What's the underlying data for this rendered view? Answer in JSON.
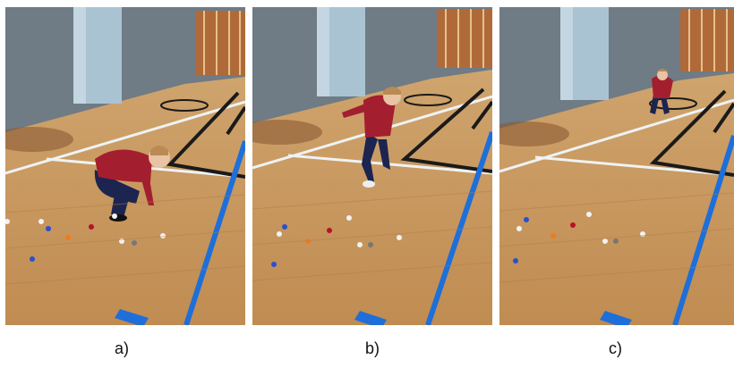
{
  "figure": {
    "panels": [
      {
        "id": "a",
        "caption": "a)"
      },
      {
        "id": "b",
        "caption": "b)"
      },
      {
        "id": "c",
        "caption": "c)"
      }
    ]
  },
  "colors": {
    "wall": "#6f7b85",
    "pillar": "#a9c3d3",
    "floor": "#c89b62",
    "court_line_blue": "#1e6fd9",
    "court_line_black": "#1a1a1a",
    "court_line_white": "#eef2f4",
    "shirt": "#a31f2f",
    "pants": "#1c2450"
  }
}
